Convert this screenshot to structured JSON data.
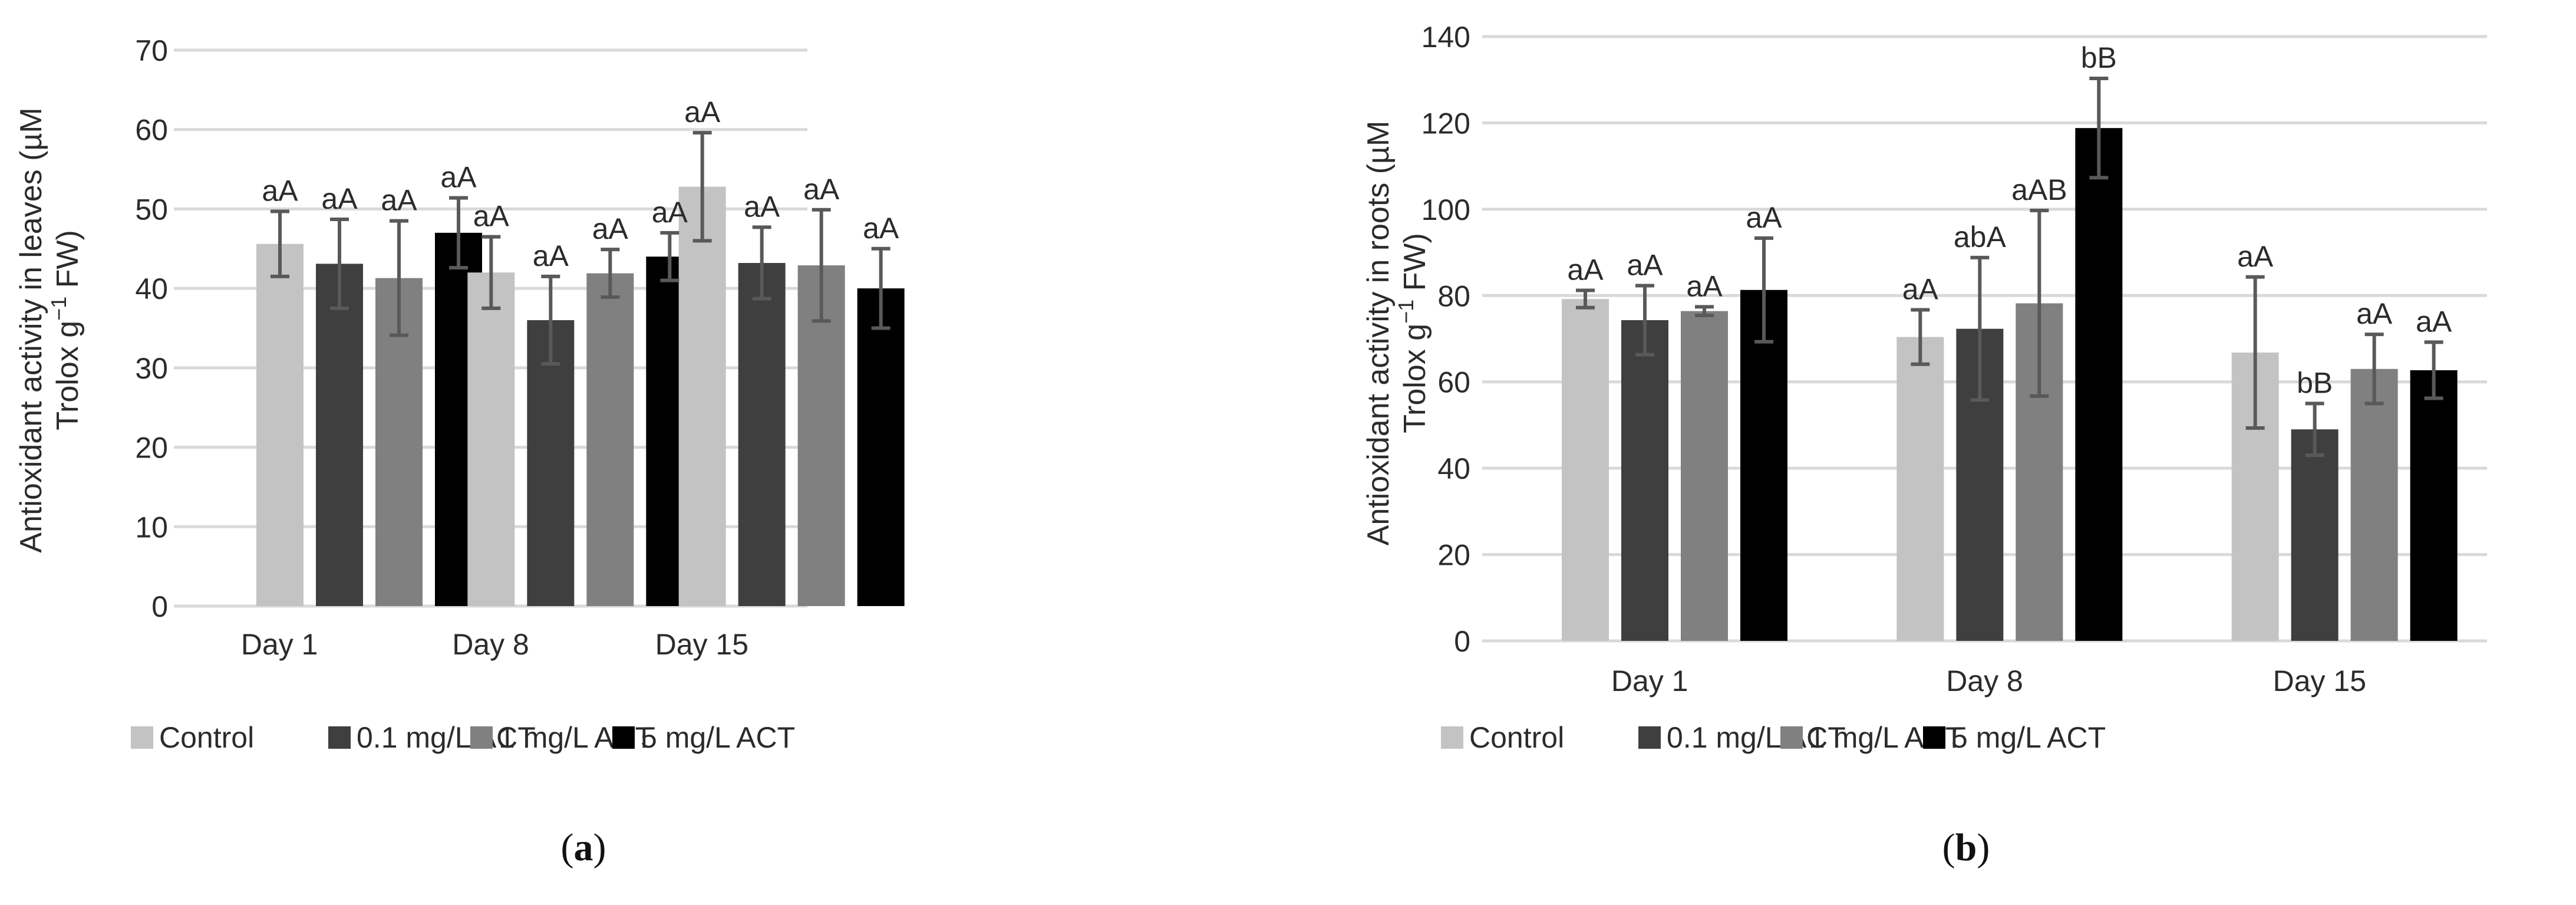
{
  "legend": [
    {
      "name": "Control",
      "color": "#c3c3c3"
    },
    {
      "name": "0.1 mg/L ACT",
      "color": "#3f3f3f"
    },
    {
      "name": "1 mg/L ACT",
      "color": "#808080"
    },
    {
      "name": "5 mg/L ACT",
      "color": "#000000"
    }
  ],
  "chart_data": [
    {
      "type": "bar",
      "panel": "a",
      "categories": [
        "Day 1",
        "Day 8",
        "Day 15"
      ],
      "ylabel_line1": "Antioxidant activity in leaves (µM",
      "ylabel_line2_a": "Trolox g",
      "ylabel_line2_sup": "−1",
      "ylabel_line2_b": " FW)",
      "ylim": [
        0,
        70
      ],
      "yticks": [
        0,
        10,
        20,
        30,
        40,
        50,
        60,
        70
      ],
      "grid": true,
      "legend_position": "bottom",
      "series": [
        {
          "name": "Control",
          "values": [
            45.6,
            42.0,
            52.8
          ],
          "errors": [
            4.1,
            4.5,
            6.8
          ],
          "labels": [
            "aA",
            "aA",
            "aA"
          ]
        },
        {
          "name": "0.1 mg/L ACT",
          "values": [
            43.1,
            36.0,
            43.2
          ],
          "errors": [
            5.6,
            5.5,
            4.5
          ],
          "labels": [
            "aA",
            "aA",
            "aA"
          ]
        },
        {
          "name": "1 mg/L ACT",
          "values": [
            41.3,
            41.9,
            42.9
          ],
          "errors": [
            7.2,
            3.0,
            7.0
          ],
          "labels": [
            "aA",
            "aA",
            "aA"
          ]
        },
        {
          "name": "5 mg/L ACT",
          "values": [
            47.0,
            44.0,
            40.0
          ],
          "errors": [
            4.4,
            3.0,
            5.0
          ],
          "labels": [
            "aA",
            "aA",
            "aA"
          ]
        }
      ],
      "panel_label": "a"
    },
    {
      "type": "bar",
      "panel": "b",
      "categories": [
        "Day 1",
        "Day 8",
        "Day 15"
      ],
      "ylabel_line1": "Antioxidant activity in roots (µM",
      "ylabel_line2_a": "Trolox g",
      "ylabel_line2_sup": "−1",
      "ylabel_line2_b": " FW)",
      "ylim": [
        0,
        140
      ],
      "yticks": [
        0,
        20,
        40,
        60,
        80,
        100,
        120,
        140
      ],
      "grid": true,
      "legend_position": "bottom",
      "series": [
        {
          "name": "Control",
          "values": [
            79.2,
            70.4,
            66.8
          ],
          "errors": [
            2.0,
            6.3,
            17.5
          ],
          "labels": [
            "aA",
            "aA",
            "aA"
          ]
        },
        {
          "name": "0.1 mg/L ACT",
          "values": [
            74.3,
            72.3,
            49.0
          ],
          "errors": [
            8.0,
            16.5,
            6.0
          ],
          "labels": [
            "aA",
            "abA",
            "bB"
          ]
        },
        {
          "name": "1 mg/L ACT",
          "values": [
            76.4,
            78.2,
            63.0
          ],
          "errors": [
            1.0,
            21.5,
            8.0
          ],
          "labels": [
            "aA",
            "aAB",
            "aA"
          ]
        },
        {
          "name": "5 mg/L ACT",
          "values": [
            81.3,
            118.8,
            62.7
          ],
          "errors": [
            12.0,
            11.5,
            6.5
          ],
          "labels": [
            "aA",
            "bB",
            "aA"
          ]
        }
      ],
      "panel_label": "b"
    }
  ]
}
